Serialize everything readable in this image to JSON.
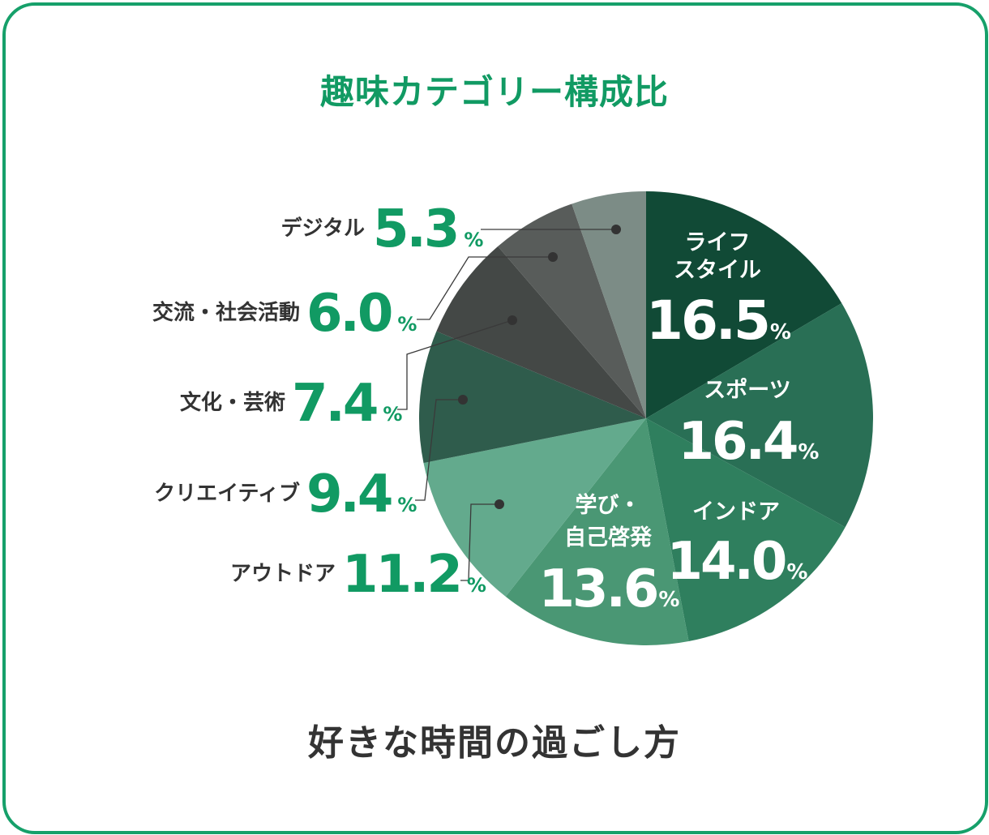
{
  "title": "趣味カテゴリー構成比",
  "subtitle": "好きな時間の過ごし方",
  "colors": {
    "accent": "#119a63",
    "border": "#16a06a",
    "label_text": "#333333"
  },
  "chart_data": {
    "type": "pie",
    "title": "趣味カテゴリー構成比",
    "unit": "%",
    "slices": [
      {
        "name": "ライフスタイル",
        "lines": [
          "ライフ",
          "スタイル"
        ],
        "value": 16.5,
        "display": "16.5",
        "color": "#114a36",
        "label": "inside"
      },
      {
        "name": "スポーツ",
        "lines": [
          "スポーツ"
        ],
        "value": 16.4,
        "display": "16.4",
        "color": "#296f55",
        "label": "inside"
      },
      {
        "name": "インドア",
        "lines": [
          "インドア"
        ],
        "value": 14.0,
        "display": "14.0",
        "color": "#2f7f5e",
        "label": "inside"
      },
      {
        "name": "学び・自己啓発",
        "lines": [
          "学び・",
          "自己啓発"
        ],
        "value": 13.6,
        "display": "13.6",
        "color": "#4a9774",
        "label": "inside"
      },
      {
        "name": "アウトドア",
        "lines": [
          "アウトドア"
        ],
        "value": 11.2,
        "display": "11.2",
        "color": "#63aa8d",
        "label": "outside"
      },
      {
        "name": "クリエイティブ",
        "lines": [
          "クリエイティブ"
        ],
        "value": 9.4,
        "display": "9.4",
        "color": "#2f5c4c",
        "label": "outside"
      },
      {
        "name": "文化・芸術",
        "lines": [
          "文化・芸術"
        ],
        "value": 7.4,
        "display": "7.4",
        "color": "#444846",
        "label": "outside"
      },
      {
        "name": "交流・社会活動",
        "lines": [
          "交流・社会活動"
        ],
        "value": 6.0,
        "display": "6.0",
        "color": "#585c5a",
        "label": "outside"
      },
      {
        "name": "デジタル",
        "lines": [
          "デジタル"
        ],
        "value": 5.3,
        "display": "5.3",
        "color": "#7c8c86",
        "label": "outside"
      }
    ]
  }
}
